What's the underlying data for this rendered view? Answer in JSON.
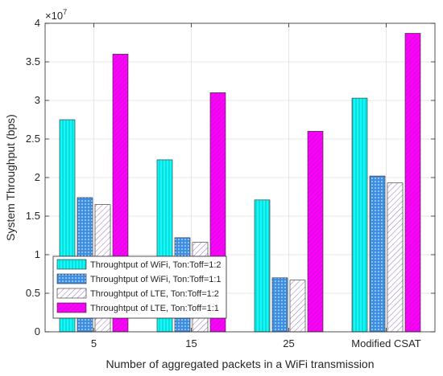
{
  "chart_data": {
    "type": "bar",
    "title": "",
    "xlabel": "Number of aggregated packets in a WiFi transmission",
    "ylabel": "System Throughput (bps)",
    "y_exponent_label": "×10",
    "y_exponent_power": "7",
    "ylim": [
      0,
      4
    ],
    "yticks": [
      "0",
      "0.5",
      "1",
      "1.5",
      "2",
      "2.5",
      "3",
      "3.5",
      "4"
    ],
    "ytick_values": [
      0,
      0.5,
      1,
      1.5,
      2,
      2.5,
      3,
      3.5,
      4
    ],
    "grid": true,
    "legend_position": "lower-left",
    "categories": [
      "5",
      "15",
      "25",
      "Modified CSAT"
    ],
    "series": [
      {
        "name": "Throughtput of WiFi, Ton:Toff=1:2",
        "values": [
          2.75,
          2.23,
          1.71,
          3.03
        ],
        "color": "#00ffff",
        "pattern": "vertical-lines"
      },
      {
        "name": "Throughtput of WiFi, Ton:Toff=1:1",
        "values": [
          1.74,
          1.22,
          0.7,
          2.02
        ],
        "color": "#3d8fe6",
        "pattern": "dots"
      },
      {
        "name": "Throughtput of LTE, Ton:Toff=1:2",
        "values": [
          1.65,
          1.16,
          0.67,
          1.93
        ],
        "color": "#ffffff",
        "pattern": "diagonal-lines"
      },
      {
        "name": "Throughtput of LTE, Ton:Toff=1:1",
        "values": [
          3.6,
          3.1,
          2.6,
          3.87
        ],
        "color": "#ff00ff",
        "pattern": "diagonal-lines"
      }
    ]
  }
}
